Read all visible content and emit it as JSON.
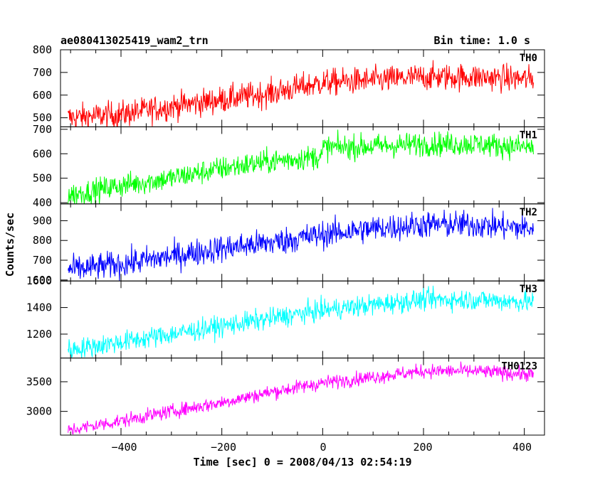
{
  "header": {
    "title": "ae080413025419_wam2_trn",
    "bin_time": "Bin time: 1.0 s"
  },
  "axes": {
    "xlabel": "Time [sec] 0 = 2008/04/13 02:54:19",
    "ylabel": "Counts/sec",
    "x_ticks": [
      "−400",
      "−200",
      "0",
      "200",
      "400"
    ]
  },
  "chart_data": {
    "type": "line",
    "title": "ae080413025419_wam2_trn",
    "xlabel": "Time [sec] 0 = 2008/04/13 02:54:19",
    "ylabel": "Counts/sec",
    "xlim": [
      -520,
      440
    ],
    "grid": false,
    "note_bin_time_s": 1.0,
    "panels": [
      {
        "name": "TH0",
        "color": "#ff0000",
        "ylim": [
          460,
          800
        ],
        "yticks": [
          500,
          600,
          700,
          800
        ],
        "x_range": [
          -505,
          418
        ],
        "trend_x": [
          -505,
          -400,
          -300,
          -200,
          -100,
          0,
          100,
          200,
          300,
          418
        ],
        "trend_y": [
          500,
          515,
          550,
          580,
          610,
          655,
          665,
          680,
          680,
          670
        ],
        "noise": 30
      },
      {
        "name": "TH1",
        "color": "#00ff00",
        "ylim": [
          395,
          710
        ],
        "yticks": [
          400,
          500,
          600,
          700
        ],
        "x_range": [
          -505,
          418
        ],
        "trend_x": [
          -505,
          -400,
          -300,
          -200,
          -100,
          -1,
          1,
          100,
          200,
          300,
          418
        ],
        "trend_y": [
          430,
          470,
          500,
          540,
          570,
          590,
          625,
          630,
          640,
          640,
          625
        ],
        "noise": 25
      },
      {
        "name": "TH2",
        "color": "#0000ff",
        "ylim": [
          595,
          985
        ],
        "yticks": [
          600,
          700,
          800,
          900
        ],
        "x_range": [
          -505,
          418
        ],
        "trend_x": [
          -505,
          -400,
          -300,
          -200,
          -100,
          0,
          100,
          200,
          300,
          418
        ],
        "trend_y": [
          650,
          680,
          720,
          760,
          790,
          830,
          860,
          880,
          880,
          860
        ],
        "noise": 35
      },
      {
        "name": "TH3",
        "color": "#00ffff",
        "ylim": [
          1020,
          1600
        ],
        "yticks": [
          1200,
          1400,
          1600
        ],
        "x_range": [
          -505,
          418
        ],
        "trend_x": [
          -505,
          -400,
          -300,
          -200,
          -100,
          0,
          100,
          200,
          300,
          418
        ],
        "trend_y": [
          1080,
          1140,
          1200,
          1260,
          1320,
          1380,
          1420,
          1460,
          1460,
          1440
        ],
        "noise": 40
      },
      {
        "name": "TH0123",
        "color": "#ff00ff",
        "ylim": [
          2600,
          3900
        ],
        "yticks": [
          3000,
          3500
        ],
        "x_range": [
          -505,
          418
        ],
        "trend_x": [
          -505,
          -400,
          -300,
          -200,
          -100,
          0,
          100,
          200,
          300,
          418
        ],
        "trend_y": [
          2680,
          2840,
          3000,
          3150,
          3330,
          3480,
          3580,
          3680,
          3680,
          3620
        ],
        "noise": 60
      }
    ]
  }
}
